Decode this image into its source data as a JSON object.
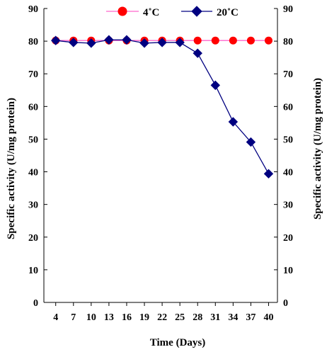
{
  "chart_data": {
    "type": "line",
    "title": "",
    "xlabel": "Time (Days)",
    "ylabel": "Specific activity  (U/mg protein)",
    "ylabel_right": "Specific activity  (U/mg protein)",
    "x": [
      4,
      7,
      10,
      13,
      16,
      19,
      22,
      25,
      28,
      31,
      34,
      37,
      40
    ],
    "xlim": [
      2,
      41.5
    ],
    "ylim": [
      0,
      90
    ],
    "yticks": [
      0,
      10,
      20,
      30,
      40,
      50,
      60,
      70,
      80,
      90
    ],
    "grid": false,
    "legend_position": "top",
    "series": [
      {
        "name": "4˚C",
        "color": "#ff0000",
        "line_color": "#ff66cc",
        "marker": "circle",
        "values": [
          80.2,
          80.2,
          80.2,
          80.2,
          80.2,
          80.2,
          80.2,
          80.2,
          80.2,
          80.2,
          80.2,
          80.2,
          80.2
        ]
      },
      {
        "name": "20˚C",
        "color": "#000080",
        "line_color": "#000080",
        "marker": "diamond",
        "values": [
          80.2,
          79.6,
          79.4,
          80.4,
          80.4,
          79.4,
          79.6,
          79.6,
          76.3,
          66.5,
          55.3,
          49.1,
          39.4
        ]
      }
    ]
  }
}
